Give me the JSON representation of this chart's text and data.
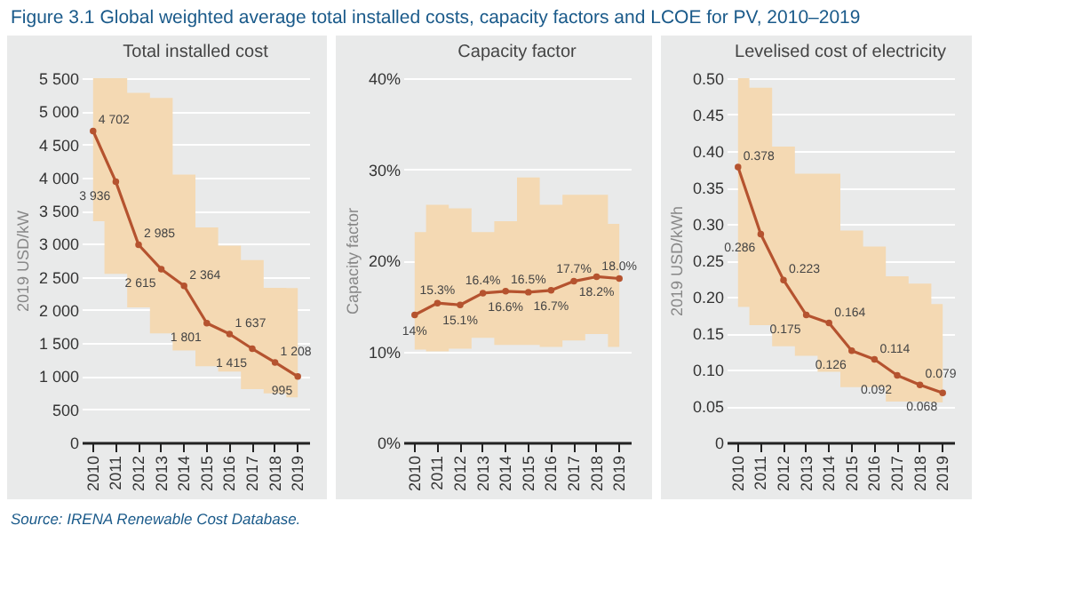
{
  "chart_data": [
    {
      "type": "line",
      "title": "Total installed cost",
      "ylabel": "2019 USD/kW",
      "annotations": [
        "Figure 3.1 Global weighted average total installed costs, capacity factors and LCOE for PV, 2010–2019",
        "Source: IRENA Renewable Cost Database."
      ],
      "categories": [
        "2010",
        "2011",
        "2012",
        "2013",
        "2014",
        "2015",
        "2016",
        "2017",
        "2018",
        "2019"
      ],
      "series": [
        {
          "color": "#b5532f",
          "values": [
            4702,
            3936,
            2985,
            2615,
            2364,
            1801,
            1637,
            1415,
            1208,
            995
          ],
          "value_labels": [
            "4 702",
            "3 936",
            "2 985",
            "2 615",
            "2 364",
            "1 801",
            "1 637",
            "1 415",
            "1 208",
            "995"
          ],
          "lower": [
            3340,
            2545,
            2040,
            1645,
            1390,
            1150,
            1070,
            805,
            740,
            680
          ],
          "upper": [
            5500,
            5500,
            5280,
            5200,
            4045,
            3245,
            2970,
            2755,
            2335,
            2330
          ]
        }
      ],
      "ylim": [
        0,
        5500
      ],
      "yticks": [
        0,
        500,
        {
          "value": 1000,
          "label": "1 000"
        },
        {
          "value": 1500,
          "label": "1 500"
        },
        {
          "value": 2000,
          "label": "2 000"
        },
        {
          "value": 2500,
          "label": "2 500"
        },
        {
          "value": 3000,
          "label": "3 000"
        },
        {
          "value": 3500,
          "label": "3 500"
        },
        {
          "value": 4000,
          "label": "4 000"
        },
        {
          "value": 4500,
          "label": "4 500"
        },
        {
          "value": 5000,
          "label": "5 000"
        },
        {
          "value": 5500,
          "label": "5 500"
        }
      ],
      "grid": "y",
      "marker": "circle"
    },
    {
      "type": "line",
      "title": "Capacity factor",
      "ylabel": "Capacity factor",
      "categories": [
        "2010",
        "2011",
        "2012",
        "2013",
        "2014",
        "2015",
        "2016",
        "2017",
        "2018",
        "2019"
      ],
      "series": [
        {
          "color": "#b5532f",
          "values": [
            14,
            15.3,
            15.1,
            16.4,
            16.6,
            16.5,
            16.7,
            17.7,
            18.2,
            18.0
          ],
          "value_labels": [
            "14%",
            "15.3%",
            "15.1%",
            "16.4%",
            "16.6%",
            "16.5%",
            "16.7%",
            "17.7%",
            "18.2%",
            "18.0%"
          ],
          "lower": [
            10.2,
            10,
            10.3,
            11.5,
            10.7,
            10.7,
            10.5,
            11.2,
            11.9,
            10.5
          ],
          "upper": [
            23.1,
            26.1,
            25.7,
            23.1,
            24.3,
            29.1,
            26.1,
            27.2,
            27.2,
            24
          ]
        }
      ],
      "ylim": [
        0,
        40
      ],
      "yticks": [
        {
          "value": 0,
          "label": "0%"
        },
        {
          "value": 10,
          "label": "10%"
        },
        {
          "value": 20,
          "label": "20%"
        },
        {
          "value": 30,
          "label": "30%"
        },
        {
          "value": 40,
          "label": "40%"
        }
      ],
      "grid": "y",
      "marker": "circle"
    },
    {
      "type": "line",
      "title": "Levelised cost of electricity",
      "ylabel": "2019 USD/kWh",
      "categories": [
        "2010",
        "2011",
        "2012",
        "2013",
        "2014",
        "2015",
        "2016",
        "2017",
        "2018",
        "2019"
      ],
      "series": [
        {
          "color": "#b5532f",
          "values": [
            0.378,
            0.286,
            0.223,
            0.175,
            0.164,
            0.126,
            0.114,
            0.092,
            0.079,
            0.068
          ],
          "lower": [
            0.186,
            0.161,
            0.132,
            0.119,
            0.097,
            0.076,
            0.076,
            0.056,
            0.056,
            0.055
          ],
          "upper": [
            0.5,
            0.487,
            0.406,
            0.369,
            0.369,
            0.291,
            0.269,
            0.228,
            0.218,
            0.19
          ]
        }
      ],
      "data_labels": true,
      "ylim": [
        0,
        0.5
      ],
      "yticks": [
        0,
        0.05,
        {
          "value": 0.1,
          "label": "0.10"
        },
        0.15,
        {
          "value": 0.2,
          "label": "0.20"
        },
        0.25,
        {
          "value": 0.3,
          "label": "0.30"
        },
        0.35,
        {
          "value": 0.4,
          "label": "0.40"
        },
        0.45,
        {
          "value": 0.5,
          "label": "0.50"
        }
      ],
      "grid": "y",
      "marker": "circle"
    }
  ]
}
